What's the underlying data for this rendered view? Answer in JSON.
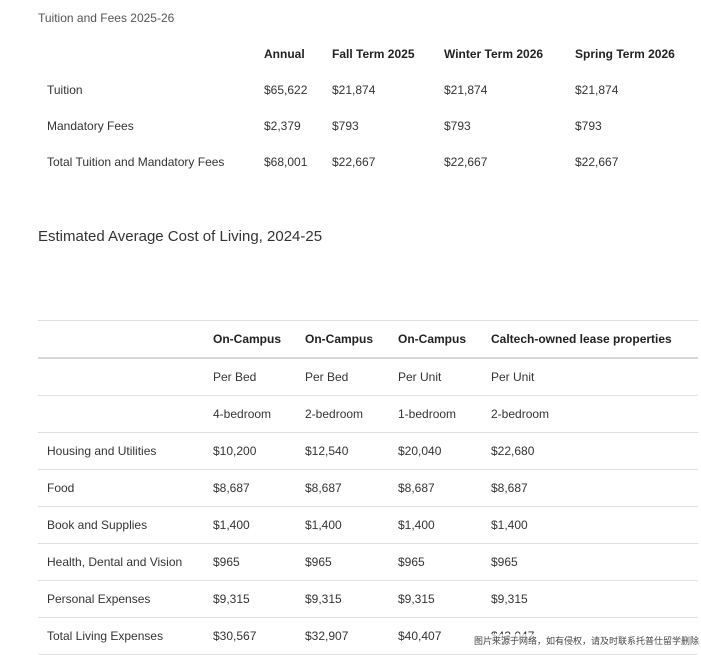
{
  "tuition": {
    "title": "Tuition and Fees 2025-26",
    "headers": [
      "",
      "Annual",
      "Fall Term 2025",
      "Winter Term 2026",
      "Spring Term 2026"
    ],
    "rows": [
      [
        "Tuition",
        "$65,622",
        "$21,874",
        "$21,874",
        "$21,874"
      ],
      [
        "Mandatory Fees",
        "$2,379",
        "$793",
        "$793",
        "$793"
      ],
      [
        "Total Tuition and Mandatory Fees",
        "$68,001",
        "$22,667",
        "$22,667",
        "$22,667"
      ]
    ]
  },
  "living": {
    "title": "Estimated Average Cost of Living, 2024-25",
    "headers": [
      "",
      "On-Campus",
      "On-Campus",
      "On-Campus",
      "Caltech-owned lease properties"
    ],
    "rows": [
      [
        "",
        "Per Bed",
        "Per Bed",
        "Per Unit",
        "Per Unit"
      ],
      [
        "",
        "4-bedroom",
        "2-bedroom",
        "1-bedroom",
        "2-bedroom"
      ],
      [
        "Housing and Utilities",
        "$10,200",
        "$12,540",
        "$20,040",
        "$22,680"
      ],
      [
        "Food",
        "$8,687",
        "$8,687",
        "$8,687",
        "$8,687"
      ],
      [
        "Book and Supplies",
        "$1,400",
        "$1,400",
        "$1,400",
        "$1,400"
      ],
      [
        "Health, Dental and Vision",
        "$965",
        "$965",
        "$965",
        "$965"
      ],
      [
        "Personal Expenses",
        "$9,315",
        "$9,315",
        "$9,315",
        "$9,315"
      ],
      [
        "Total Living Expenses",
        "$30,567",
        "$32,907",
        "$40,407",
        "$43,047"
      ]
    ]
  },
  "watermark": "图片来源于网络，如有侵权，请及时联系托普仕留学删除"
}
